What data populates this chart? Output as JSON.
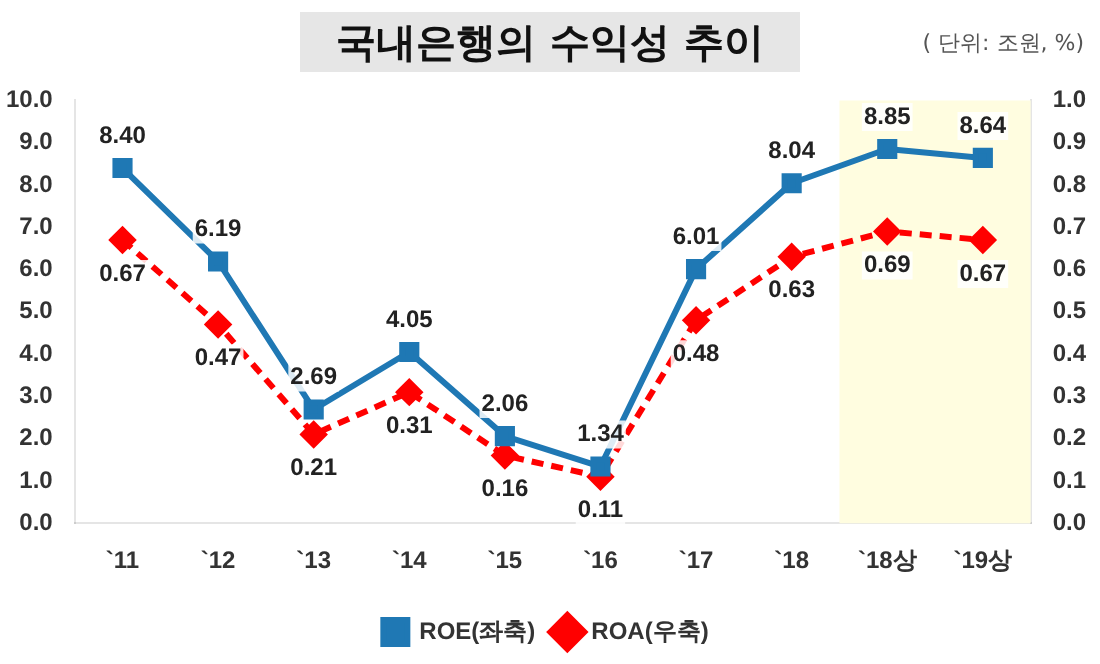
{
  "chart_data": {
    "type": "line",
    "title": "국내은행의 수익성 추이",
    "annotations": [
      "( 단위: 조원, %)"
    ],
    "categories": [
      "`11",
      "`12",
      "`13",
      "`14",
      "`15",
      "`16",
      "`17",
      "`18",
      "`18상",
      "`19상"
    ],
    "series": [
      {
        "name": "ROE(좌축)",
        "color": "#1f78b4",
        "values": [
          8.4,
          6.19,
          2.69,
          4.05,
          2.06,
          1.34,
          6.01,
          8.04,
          8.85,
          8.64
        ],
        "value_labels": [
          "8.40",
          "6.19",
          "2.69",
          "4.05",
          "2.06",
          "1.34",
          "6.01",
          "8.04",
          "8.85",
          "8.64"
        ],
        "marker": "square",
        "line_style": "solid"
      },
      {
        "name": "ROA(우축)",
        "color": "#ff0000",
        "values": [
          0.67,
          0.47,
          0.21,
          0.31,
          0.16,
          0.11,
          0.48,
          0.63,
          0.69,
          0.67
        ],
        "value_labels": [
          "0.67",
          "0.47",
          "0.21",
          "0.31",
          "0.16",
          "0.11",
          "0.48",
          "0.63",
          "0.69",
          "0.67"
        ],
        "axis": "y2",
        "marker": "diamond",
        "line_style": "dashed"
      }
    ],
    "ylim": [
      0,
      10
    ],
    "yticks": [
      {
        "value": 0,
        "label": "0.0"
      },
      {
        "value": 1,
        "label": "1.0"
      },
      {
        "value": 2,
        "label": "2.0"
      },
      {
        "value": 3,
        "label": "3.0"
      },
      {
        "value": 4,
        "label": "4.0"
      },
      {
        "value": 5,
        "label": "5.0"
      },
      {
        "value": 6,
        "label": "6.0"
      },
      {
        "value": 7,
        "label": "7.0"
      },
      {
        "value": 8,
        "label": "8.0"
      },
      {
        "value": 9,
        "label": "9.0"
      },
      {
        "value": 10,
        "label": "10.0"
      }
    ],
    "y2lim": [
      0,
      1
    ],
    "y2ticks": [
      {
        "value": 0,
        "label": "0.0"
      },
      0.1,
      0.2,
      0.3,
      0.4,
      0.5,
      0.6,
      0.7,
      0.8,
      0.9,
      {
        "value": 1,
        "label": "1.0"
      }
    ],
    "bands": [
      {
        "axis": "x",
        "from": "`18상",
        "to": "`19상",
        "color": "#fffde0"
      }
    ],
    "grid": false,
    "legend": "bottom"
  }
}
